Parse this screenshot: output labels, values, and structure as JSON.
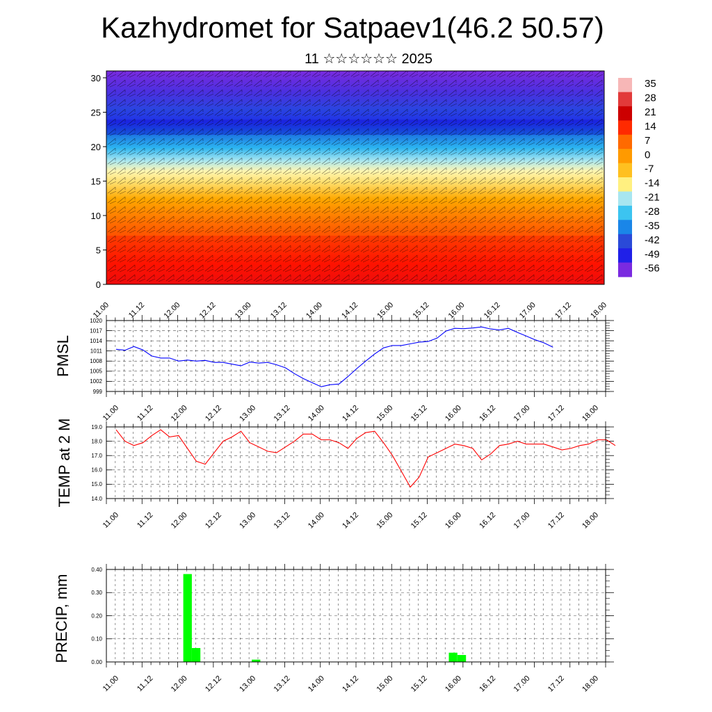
{
  "header": {
    "title": "Kazhydromet for Satpaev1(46.2 50.57)",
    "subtitle": "11 ☆☆☆☆☆☆ 2025"
  },
  "time_labels": [
    "11.00",
    "11.12",
    "12.00",
    "12.12",
    "13.00",
    "13.12",
    "14.00",
    "14.12",
    "15.00",
    "15.12",
    "16.00",
    "16.12",
    "17.00",
    "17.12",
    "18.00"
  ],
  "chart_data": [
    {
      "id": "cross-section",
      "type": "heatmap",
      "title": "",
      "ylabel": "",
      "ylim": [
        0,
        31
      ],
      "y_ticks": [
        0,
        5,
        10,
        15,
        20,
        25,
        30
      ],
      "colorbar": {
        "labels": [
          "35",
          "28",
          "21",
          "14",
          "7",
          "0",
          "-7",
          "-14",
          "-21",
          "-28",
          "-35",
          "-42",
          "-49",
          "-56"
        ],
        "colors": [
          "#f7b7b7",
          "#e23a3a",
          "#cc0000",
          "#ff2a00",
          "#ff6a00",
          "#ff9a00",
          "#ffc020",
          "#fff080",
          "#a8e6f0",
          "#3cc4f0",
          "#1a86e8",
          "#2a4ad8",
          "#2020e8",
          "#7a2ae0"
        ]
      }
    },
    {
      "id": "pmsl",
      "type": "line",
      "ylabel": "PMSL",
      "ylim": [
        999,
        1020
      ],
      "y_ticks": [
        "999",
        "1002",
        "1005",
        "1008",
        "1011",
        "1014",
        "1017",
        "1020"
      ],
      "color": "#0000ff",
      "x_step_hours": 3,
      "values": [
        1011.5,
        1011.2,
        1012.3,
        1011.3,
        1009.5,
        1008.9,
        1008.9,
        1008.0,
        1008.3,
        1008.0,
        1008.2,
        1007.6,
        1007.6,
        1007.1,
        1006.6,
        1007.7,
        1007.4,
        1007.6,
        1006.9,
        1006.0,
        1004.3,
        1002.8,
        1001.6,
        1000.4,
        1001.0,
        1001.2,
        1003.4,
        1005.8,
        1008.0,
        1010.1,
        1011.9,
        1012.6,
        1012.6,
        1013.1,
        1013.6,
        1013.8,
        1014.8,
        1016.9,
        1017.7,
        1017.6,
        1017.8,
        1018.1,
        1017.5,
        1017.2,
        1017.7,
        1016.5,
        1015.4,
        1014.3,
        1013.4,
        1012.1
      ]
    },
    {
      "id": "temp2m",
      "type": "line",
      "ylabel": "TEMP at 2 M",
      "ylim": [
        14.0,
        19.0
      ],
      "y_ticks": [
        "14.0",
        "15.0",
        "16.0",
        "17.0",
        "18.0",
        "19.0"
      ],
      "color": "#ff0000",
      "x_step_hours": 3,
      "values": [
        18.8,
        18.0,
        17.7,
        17.9,
        18.4,
        18.8,
        18.3,
        18.4,
        17.5,
        16.6,
        16.4,
        17.2,
        18.0,
        18.3,
        18.7,
        17.9,
        17.6,
        17.3,
        17.2,
        17.6,
        18.0,
        18.5,
        18.5,
        18.1,
        18.1,
        17.9,
        17.5,
        18.2,
        18.6,
        18.7,
        17.9,
        17.0,
        15.9,
        14.8,
        15.5,
        16.9,
        17.2,
        17.5,
        17.8,
        17.7,
        17.5,
        16.7,
        17.1,
        17.7,
        17.8,
        18.0,
        17.8,
        17.8,
        17.8,
        17.6,
        17.4,
        17.5,
        17.7,
        17.8,
        18.1,
        18.1,
        17.7
      ]
    },
    {
      "id": "precip",
      "type": "bar",
      "ylabel": "PRECIP, mm",
      "ylim": [
        0,
        0.4
      ],
      "y_ticks": [
        "0.00",
        "0.10",
        "0.20",
        "0.30",
        "0.40"
      ],
      "color": "#00ff00",
      "bar_width_hours": 3,
      "bars": [
        {
          "hour": 24,
          "value": 0.38
        },
        {
          "hour": 27,
          "value": 0.06
        },
        {
          "hour": 48,
          "value": 0.01
        },
        {
          "hour": 117,
          "value": 0.04
        },
        {
          "hour": 120,
          "value": 0.03
        }
      ]
    }
  ]
}
